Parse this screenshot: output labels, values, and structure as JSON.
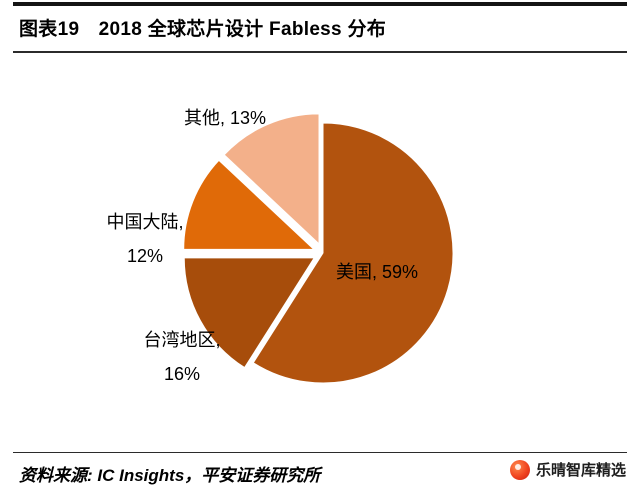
{
  "header": {
    "title": "图表19　2018 全球芯片设计 Fabless 分布"
  },
  "footer": {
    "source": "资料来源: IC Insights，平安证券研究所",
    "watermark": "乐晴智库精选"
  },
  "chart_data": {
    "type": "pie",
    "title": "2018 全球芯片设计 Fabless 分布",
    "unit": "%",
    "legend": "none",
    "direction": "clockwise",
    "start_angle_deg": 0,
    "slices": [
      {
        "key": "usa",
        "label": "美国",
        "value": 59,
        "color": "#B2530E",
        "exploded": false,
        "callout": {
          "line1": "美国, 59%"
        }
      },
      {
        "key": "taiwan",
        "label": "台湾地区",
        "value": 16,
        "color": "#A74D0B",
        "exploded": true,
        "callout": {
          "line1": "台湾地区,",
          "line2": "16%"
        }
      },
      {
        "key": "mainland-china",
        "label": "中国大陆",
        "value": 12,
        "color": "#E06A08",
        "exploded": true,
        "callout": {
          "line1": "中国大陆,",
          "line2": "12%"
        }
      },
      {
        "key": "others",
        "label": "其他",
        "value": 13,
        "color": "#F3B08A",
        "exploded": true,
        "callout": {
          "line1": "其他, 13%"
        }
      }
    ]
  }
}
